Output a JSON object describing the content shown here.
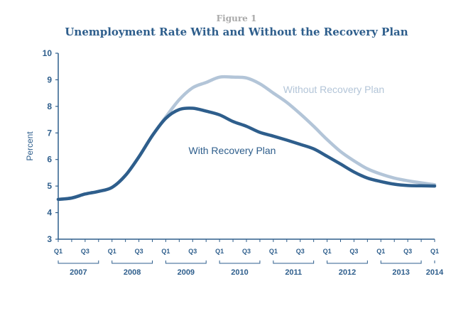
{
  "figure_label": "Figure 1",
  "chart_data": {
    "type": "line",
    "title": "Unemployment Rate With and Without the Recovery Plan",
    "xlabel": "",
    "ylabel": "Percent",
    "ylim": [
      3,
      10
    ],
    "yticks": [
      3,
      4,
      5,
      6,
      7,
      8,
      9,
      10
    ],
    "grid": false,
    "x": [
      "2007 Q1",
      "2007 Q2",
      "2007 Q3",
      "2007 Q4",
      "2008 Q1",
      "2008 Q2",
      "2008 Q3",
      "2008 Q4",
      "2009 Q1",
      "2009 Q2",
      "2009 Q3",
      "2009 Q4",
      "2010 Q1",
      "2010 Q2",
      "2010 Q3",
      "2010 Q4",
      "2011 Q1",
      "2011 Q2",
      "2011 Q3",
      "2011 Q4",
      "2012 Q1",
      "2012 Q2",
      "2012 Q3",
      "2012 Q4",
      "2013 Q1",
      "2013 Q2",
      "2013 Q3",
      "2013 Q4",
      "2014 Q1"
    ],
    "quarter_ticks": [
      "Q1",
      "Q3",
      "Q1",
      "Q3",
      "Q1",
      "Q3",
      "Q1",
      "Q3",
      "Q1",
      "Q3",
      "Q1",
      "Q3",
      "Q1",
      "Q3",
      "Q1"
    ],
    "years": [
      "2007",
      "2008",
      "2009",
      "2010",
      "2011",
      "2012",
      "2013",
      "2014"
    ],
    "series": [
      {
        "name": "Without Recovery Plan",
        "color": "#b3c5d8",
        "values": [
          4.5,
          4.55,
          4.7,
          4.8,
          4.95,
          5.4,
          6.1,
          6.9,
          7.6,
          8.25,
          8.7,
          8.9,
          9.1,
          9.1,
          9.07,
          8.85,
          8.5,
          8.15,
          7.72,
          7.25,
          6.75,
          6.3,
          5.95,
          5.65,
          5.45,
          5.3,
          5.2,
          5.12,
          5.05
        ]
      },
      {
        "name": "With Recovery Plan",
        "color": "#2e5e8c",
        "values": [
          4.5,
          4.55,
          4.7,
          4.8,
          4.95,
          5.4,
          6.1,
          6.9,
          7.55,
          7.88,
          7.93,
          7.82,
          7.68,
          7.43,
          7.25,
          7.02,
          6.88,
          6.73,
          6.57,
          6.4,
          6.12,
          5.83,
          5.53,
          5.3,
          5.17,
          5.07,
          5.02,
          5.01,
          5.0
        ]
      }
    ]
  }
}
